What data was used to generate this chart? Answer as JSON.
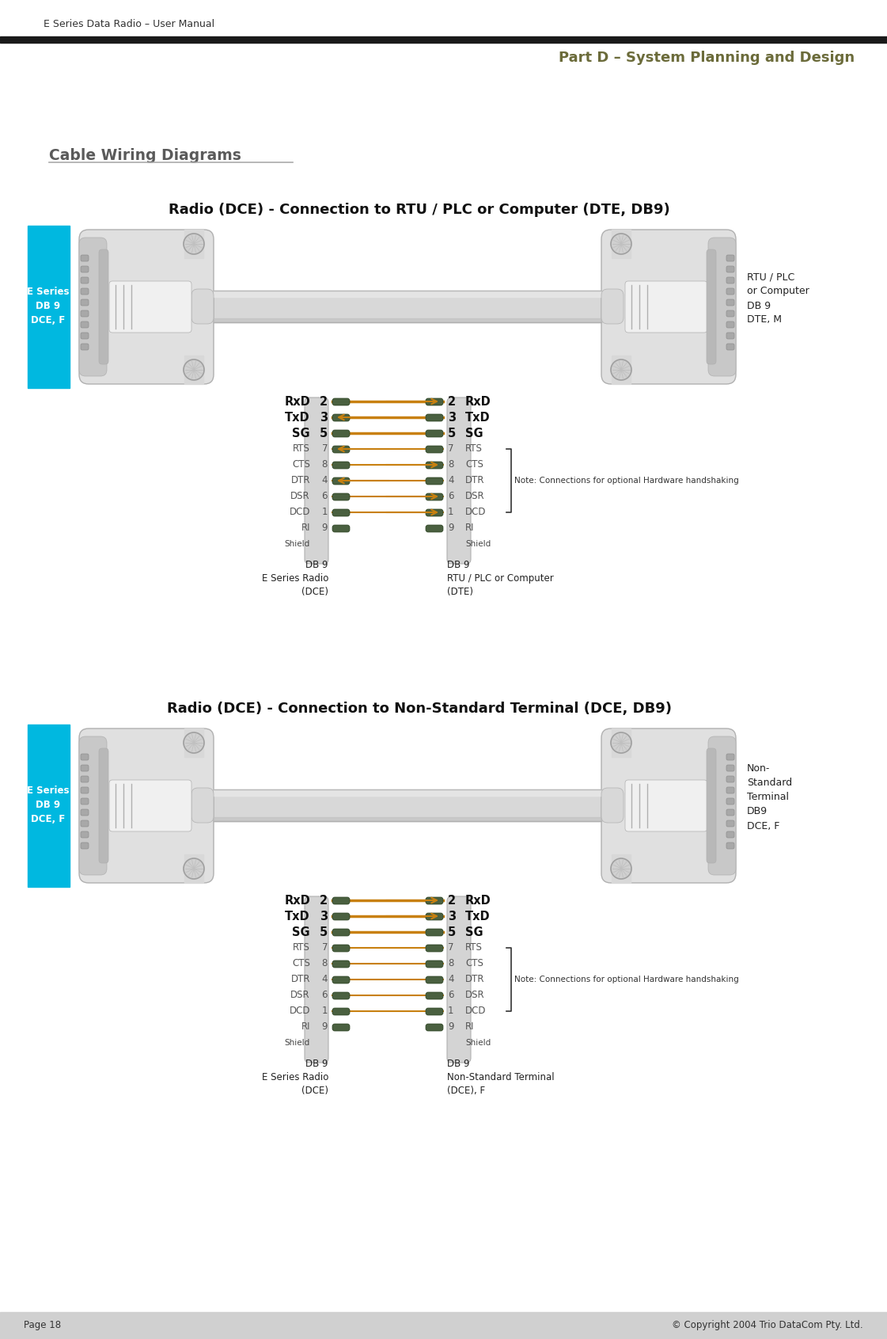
{
  "page_title_left": "E Series Data Radio – User Manual",
  "page_title_right": "Part D – System Planning and Design",
  "section_title": "Cable Wiring Diagrams",
  "diagram1_title": "Radio (DCE) - Connection to RTU / PLC or Computer (DTE, DB9)",
  "diagram2_title": "Radio (DCE) - Connection to Non-Standard Terminal (DCE, DB9)",
  "left_label1": "E Series\nDB 9\nDCE, F",
  "right_label1": "RTU / PLC\nor Computer\nDB 9\nDTE, M",
  "left_label2": "E Series\nDB 9\nDCE, F",
  "right_label2": "Non-\nStandard\nTerminal\nDB9\nDCE, F",
  "db9_left_label1": "DB 9\nE Series Radio\n(DCE)",
  "db9_right_label1": "DB 9\nRTU / PLC or Computer\n(DTE)",
  "db9_left_label2": "DB 9\nE Series Radio\n(DCE)",
  "db9_right_label2": "DB 9\nNon-Standard Terminal\n(DCE), F",
  "note_text": "Note: Connections for optional Hardware handshaking",
  "page_left": "Page 18",
  "page_right": "© Copyright 2004 Trio DataCom Pty. Ltd.",
  "header_line_color": "#1a1a1a",
  "part_d_color": "#6b6b3a",
  "section_title_color": "#5a5a5a",
  "cyan_color": "#00b8e0",
  "wire_orange": "#c88010",
  "bg_color": "#ffffff",
  "footer_bg": "#d0d0d0",
  "signals_diagram1": [
    {
      "name": "RxD",
      "pin": "2",
      "right_pin": "2",
      "right_name": "RxD",
      "arrow": "right",
      "color": "#c88010",
      "bold": true
    },
    {
      "name": "TxD",
      "pin": "3",
      "right_pin": "3",
      "right_name": "TxD",
      "arrow": "left",
      "color": "#c88010",
      "bold": true
    },
    {
      "name": "SG",
      "pin": "5",
      "right_pin": "5",
      "right_name": "SG",
      "arrow": "none",
      "color": "#c88010",
      "bold": true
    },
    {
      "name": "RTS",
      "pin": "7",
      "right_pin": "7",
      "right_name": "RTS",
      "arrow": "left",
      "color": "#c88010",
      "bold": false
    },
    {
      "name": "CTS",
      "pin": "8",
      "right_pin": "8",
      "right_name": "CTS",
      "arrow": "right",
      "color": "#c88010",
      "bold": false
    },
    {
      "name": "DTR",
      "pin": "4",
      "right_pin": "4",
      "right_name": "DTR",
      "arrow": "left",
      "color": "#c88010",
      "bold": false
    },
    {
      "name": "DSR",
      "pin": "6",
      "right_pin": "6",
      "right_name": "DSR",
      "arrow": "right",
      "color": "#c88010",
      "bold": false
    },
    {
      "name": "DCD",
      "pin": "1",
      "right_pin": "1",
      "right_name": "DCD",
      "arrow": "right",
      "color": "#c88010",
      "bold": false
    },
    {
      "name": "RI",
      "pin": "9",
      "right_pin": "9",
      "right_name": "RI",
      "arrow": "none",
      "color": "#888888",
      "bold": false
    },
    {
      "name": "Shield",
      "pin": "",
      "right_pin": "",
      "right_name": "Shield",
      "arrow": "none",
      "color": "#888888",
      "bold": false
    }
  ],
  "signals_diagram2": [
    {
      "name": "RxD",
      "pin": "2",
      "right_pin": "2",
      "right_name": "RxD",
      "arrow": "cross",
      "color": "#c88010",
      "bold": true
    },
    {
      "name": "TxD",
      "pin": "3",
      "right_pin": "3",
      "right_name": "TxD",
      "arrow": "cross",
      "color": "#c88010",
      "bold": true
    },
    {
      "name": "SG",
      "pin": "5",
      "right_pin": "5",
      "right_name": "SG",
      "arrow": "none",
      "color": "#c88010",
      "bold": true
    },
    {
      "name": "RTS",
      "pin": "7",
      "right_pin": "7",
      "right_name": "RTS",
      "arrow": "none",
      "color": "#c88010",
      "bold": false
    },
    {
      "name": "CTS",
      "pin": "8",
      "right_pin": "8",
      "right_name": "CTS",
      "arrow": "none",
      "color": "#c88010",
      "bold": false
    },
    {
      "name": "DTR",
      "pin": "4",
      "right_pin": "4",
      "right_name": "DTR",
      "arrow": "none",
      "color": "#c88010",
      "bold": false
    },
    {
      "name": "DSR",
      "pin": "6",
      "right_pin": "6",
      "right_name": "DSR",
      "arrow": "none",
      "color": "#c88010",
      "bold": false
    },
    {
      "name": "DCD",
      "pin": "1",
      "right_pin": "1",
      "right_name": "DCD",
      "arrow": "none",
      "color": "#c88010",
      "bold": false
    },
    {
      "name": "RI",
      "pin": "9",
      "right_pin": "9",
      "right_name": "RI",
      "arrow": "none",
      "color": "#888888",
      "bold": false
    },
    {
      "name": "Shield",
      "pin": "",
      "right_pin": "",
      "right_name": "Shield",
      "arrow": "none",
      "color": "#888888",
      "bold": false
    }
  ]
}
